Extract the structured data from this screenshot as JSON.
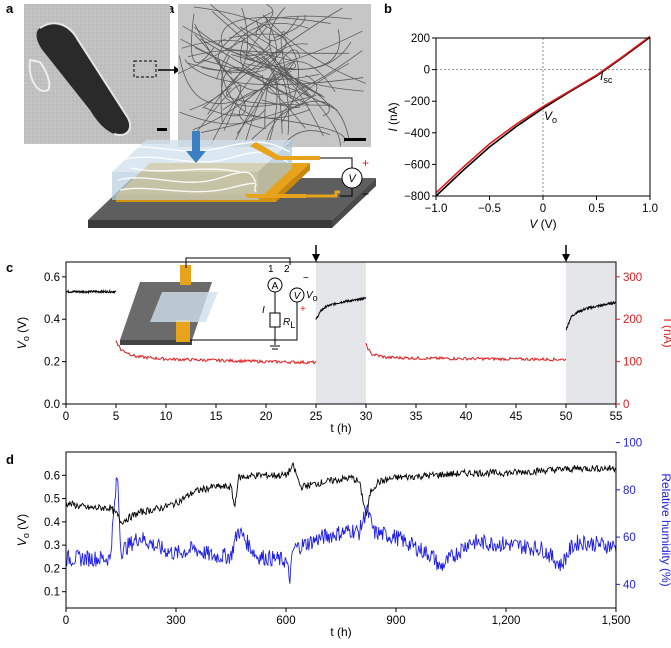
{
  "panel_labels": {
    "a": "a",
    "b": "b",
    "c": "c",
    "d": "d"
  },
  "colors": {
    "black_trace": "#000000",
    "red_trace": "#e31a1c",
    "blue_trace": "#1f1fe6",
    "shade": "#e4e6ea",
    "gold": "#e8a31c",
    "substrate": "#6b6b6b"
  },
  "panel_a": {
    "inset_circuit": {
      "plus": "+",
      "minus": "−",
      "voltmeter": "V"
    },
    "icons": [
      "bacterium-micrograph",
      "nanowire-network-micrograph",
      "device-schematic",
      "voltmeter-icon"
    ]
  },
  "chart_data": [
    {
      "id": "b",
      "type": "line",
      "xlabel_main": "V",
      "xlabel_unit": "(V)",
      "ylabel_main": "I",
      "ylabel_unit": "(nA)",
      "xlim": [
        -1.0,
        1.0
      ],
      "ylim": [
        -800,
        200
      ],
      "xticks": [
        "−1.0",
        "−0.5",
        "0",
        "0.5",
        "1.0"
      ],
      "yticks": [
        "200",
        "0",
        "−200",
        "−400",
        "−600",
        "−800"
      ],
      "annotations": {
        "isc_main": "I",
        "isc_sub": "sc",
        "vo_main": "V",
        "vo_sub": "o"
      },
      "series": [
        {
          "color": "#000000",
          "x": [
            -1.0,
            -0.75,
            -0.5,
            -0.25,
            0.0,
            0.25,
            0.5,
            0.75,
            1.0
          ],
          "y": [
            -800,
            -640,
            -490,
            -360,
            -245,
            -140,
            -40,
            80,
            205
          ]
        },
        {
          "color": "#e31a1c",
          "x": [
            -1.0,
            -0.75,
            -0.5,
            -0.25,
            0.0,
            0.25,
            0.5,
            0.75,
            1.0
          ],
          "y": [
            -780,
            -620,
            -470,
            -345,
            -235,
            -135,
            -35,
            85,
            210
          ]
        }
      ]
    },
    {
      "id": "c",
      "type": "line",
      "xlabel": "t (h)",
      "ylabel_main": "V",
      "ylabel_sub": "o",
      "ylabel_unit": "(V)",
      "y2label": "I (nA)",
      "xlim": [
        0,
        55
      ],
      "ylim": [
        0.0,
        0.6
      ],
      "y2lim": [
        0,
        300
      ],
      "xticks": [
        "0",
        "5",
        "10",
        "15",
        "20",
        "25",
        "30",
        "35",
        "40",
        "45",
        "50",
        "55"
      ],
      "yticks": [
        "0.0",
        "0.2",
        "0.4",
        "0.6"
      ],
      "y2ticks": [
        "0",
        "100",
        "200",
        "300"
      ],
      "shaded_intervals": [
        [
          25,
          30
        ],
        [
          50,
          55
        ]
      ],
      "arrows_at_t": [
        25,
        50
      ],
      "inset": {
        "switch_1": "1",
        "switch_2": "2",
        "ammeter": "A",
        "voltmeter": "V",
        "current": "I",
        "vo_main": "V",
        "vo_sub": "o",
        "load_main": "R",
        "load_sub": "L",
        "plus": "+",
        "minus": "−"
      },
      "series": [
        {
          "color": "#000000",
          "axis": "left",
          "segments": [
            {
              "t": [
                0,
                5
              ],
              "v": [
                0.53,
                0.53
              ]
            },
            {
              "t": [
                25,
                25.5,
                26,
                27,
                28,
                29,
                30
              ],
              "v": [
                0.4,
                0.44,
                0.46,
                0.475,
                0.485,
                0.49,
                0.5
              ]
            },
            {
              "t": [
                50,
                50.5,
                51,
                52,
                53,
                54,
                55
              ],
              "v": [
                0.35,
                0.41,
                0.43,
                0.45,
                0.46,
                0.47,
                0.48
              ]
            }
          ]
        },
        {
          "color": "#e31a1c",
          "axis": "right",
          "segments": [
            {
              "t": [
                5,
                5.5,
                7,
                10,
                15,
                20,
                25
              ],
              "i": [
                150,
                128,
                112,
                106,
                103,
                100,
                98
              ]
            },
            {
              "t": [
                30,
                30.5,
                32,
                35,
                40,
                45,
                50
              ],
              "i": [
                140,
                118,
                110,
                108,
                107,
                106,
                105
              ]
            }
          ]
        }
      ]
    },
    {
      "id": "d",
      "type": "line",
      "xlabel": "t (h)",
      "ylabel_main": "V",
      "ylabel_sub": "o",
      "ylabel_unit": "(V)",
      "y2label": "Relative humidity (%)",
      "xlim": [
        0,
        1500
      ],
      "ylim": [
        0.05,
        0.7
      ],
      "y2lim": [
        35,
        100
      ],
      "xticks": [
        "0",
        "300",
        "600",
        "900",
        "1,200",
        "1,500"
      ],
      "yticks": [
        "0.1",
        "0.2",
        "0.3",
        "0.4",
        "0.5",
        "0.6"
      ],
      "y2ticks": [
        "40",
        "60",
        "80",
        "100"
      ],
      "series": [
        {
          "color": "#000000",
          "axis": "left",
          "t": [
            0,
            60,
            120,
            140,
            150,
            200,
            260,
            300,
            350,
            400,
            450,
            460,
            470,
            520,
            600,
            620,
            640,
            700,
            780,
            800,
            820,
            830,
            850,
            900,
            1000,
            1100,
            1200,
            1300,
            1400,
            1500
          ],
          "v": [
            0.48,
            0.46,
            0.46,
            0.43,
            0.4,
            0.44,
            0.46,
            0.48,
            0.53,
            0.55,
            0.55,
            0.46,
            0.59,
            0.6,
            0.6,
            0.64,
            0.55,
            0.57,
            0.59,
            0.57,
            0.42,
            0.53,
            0.57,
            0.59,
            0.6,
            0.61,
            0.61,
            0.62,
            0.63,
            0.63
          ]
        },
        {
          "color": "#1f1fe6",
          "axis": "right",
          "t": [
            0,
            60,
            120,
            140,
            150,
            200,
            260,
            300,
            350,
            400,
            450,
            460,
            470,
            520,
            600,
            610,
            620,
            700,
            780,
            800,
            820,
            840,
            900,
            1000,
            1020,
            1100,
            1200,
            1300,
            1350,
            1380,
            1400,
            1500
          ],
          "h": [
            51,
            51,
            51,
            87,
            54,
            60,
            55,
            53,
            55,
            52,
            52,
            58,
            63,
            52,
            50,
            42,
            55,
            60,
            63,
            62,
            72,
            62,
            60,
            52,
            47,
            58,
            57,
            55,
            48,
            56,
            58,
            56
          ]
        }
      ]
    }
  ]
}
